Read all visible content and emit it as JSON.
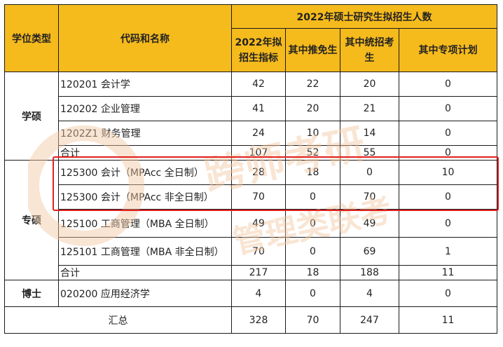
{
  "header": {
    "degree_type": "学位类型",
    "code_name": "代码和名称",
    "group_title": "2022年硕士研究生拟招生人数",
    "col_plan": "2022年拟招生指标",
    "col_exempt": "其中推免生",
    "col_unified": "其中统招考生",
    "col_special": "其中专项计划"
  },
  "sections": [
    {
      "label": "学硕",
      "rows": [
        {
          "name": "120201 会计学",
          "plan": "42",
          "exempt": "22",
          "unified": "20",
          "special": "0"
        },
        {
          "name": "120202 企业管理",
          "plan": "41",
          "exempt": "20",
          "unified": "21",
          "special": "0"
        },
        {
          "name": "1202Z1 财务管理",
          "plan": "24",
          "exempt": "10",
          "unified": "14",
          "special": "0"
        },
        {
          "name": "合计",
          "plan": "107",
          "exempt": "52",
          "unified": "55",
          "special": "0"
        }
      ]
    },
    {
      "label": "专硕",
      "rows": [
        {
          "name": "125300 会计（MPAcc 全日制）",
          "plan": "28",
          "exempt": "18",
          "unified": "0",
          "special": "10"
        },
        {
          "name": "125300 会计（MPAcc 非全日制）",
          "plan": "70",
          "exempt": "0",
          "unified": "70",
          "special": "0"
        },
        {
          "name": "125100 工商管理（MBA 全日制）",
          "plan": "49",
          "exempt": "0",
          "unified": "49",
          "special": "0"
        },
        {
          "name": "125101 工商管理（MBA 非全日制）",
          "plan": "70",
          "exempt": "0",
          "unified": "69",
          "special": "1"
        },
        {
          "name": "合计",
          "plan": "217",
          "exempt": "18",
          "unified": "188",
          "special": "11"
        }
      ]
    },
    {
      "label": "博士",
      "rows": [
        {
          "name": "020200 应用经济学",
          "plan": "4",
          "exempt": "0",
          "unified": "4",
          "special": "0"
        }
      ]
    }
  ],
  "summary": {
    "label": "汇总",
    "plan": "328",
    "exempt": "70",
    "unified": "247",
    "special": "11"
  },
  "watermark": {
    "line1": "跨师考研",
    "line2": "管理类联考"
  },
  "colors": {
    "header_bg": "#f5ba1c",
    "highlight": "#e02020",
    "watermark": "#f3c6a0"
  }
}
